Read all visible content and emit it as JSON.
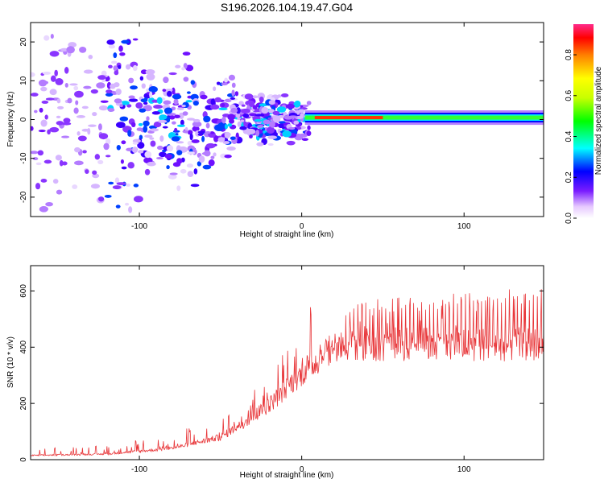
{
  "title": "S196.2026.104.19.47.G04",
  "chart_data": [
    {
      "type": "heatmap",
      "xlabel": "Height of straight line (km)",
      "ylabel": "Frequency (Hz)",
      "xlim": [
        -167,
        149
      ],
      "ylim": [
        -25,
        25
      ],
      "xticks": [
        -100,
        0,
        100
      ],
      "yticks": [
        -20,
        -10,
        0,
        10,
        20
      ],
      "description_of_pattern": "scattered low-amplitude speckle for x < 0, narrow line near 0 Hz for x > 0",
      "line_center_hz": 0.5,
      "colorbar": {
        "label": "Normalized spectral amplitude",
        "range": [
          0,
          0.95
        ],
        "ticks": [
          0,
          0.2,
          0.4,
          0.6,
          0.8
        ]
      }
    },
    {
      "type": "line",
      "xlabel": "Height of straight line (km)",
      "ylabel": "SNR (10 * v/v)",
      "xlim": [
        -167,
        149
      ],
      "ylim": [
        0,
        690
      ],
      "xticks": [
        -100,
        0,
        100
      ],
      "yticks": [
        0,
        200,
        400,
        600
      ],
      "color": "#e8373a",
      "envelope": {
        "x": [
          -167,
          -120,
          -80,
          -50,
          -30,
          -15,
          -5,
          5,
          15,
          30,
          60,
          100,
          149
        ],
        "baseline": [
          15,
          20,
          40,
          80,
          150,
          220,
          280,
          330,
          380,
          410,
          410,
          410,
          410
        ],
        "peaks": [
          40,
          50,
          100,
          150,
          250,
          350,
          450,
          550,
          500,
          560,
          580,
          600,
          610
        ]
      }
    }
  ]
}
